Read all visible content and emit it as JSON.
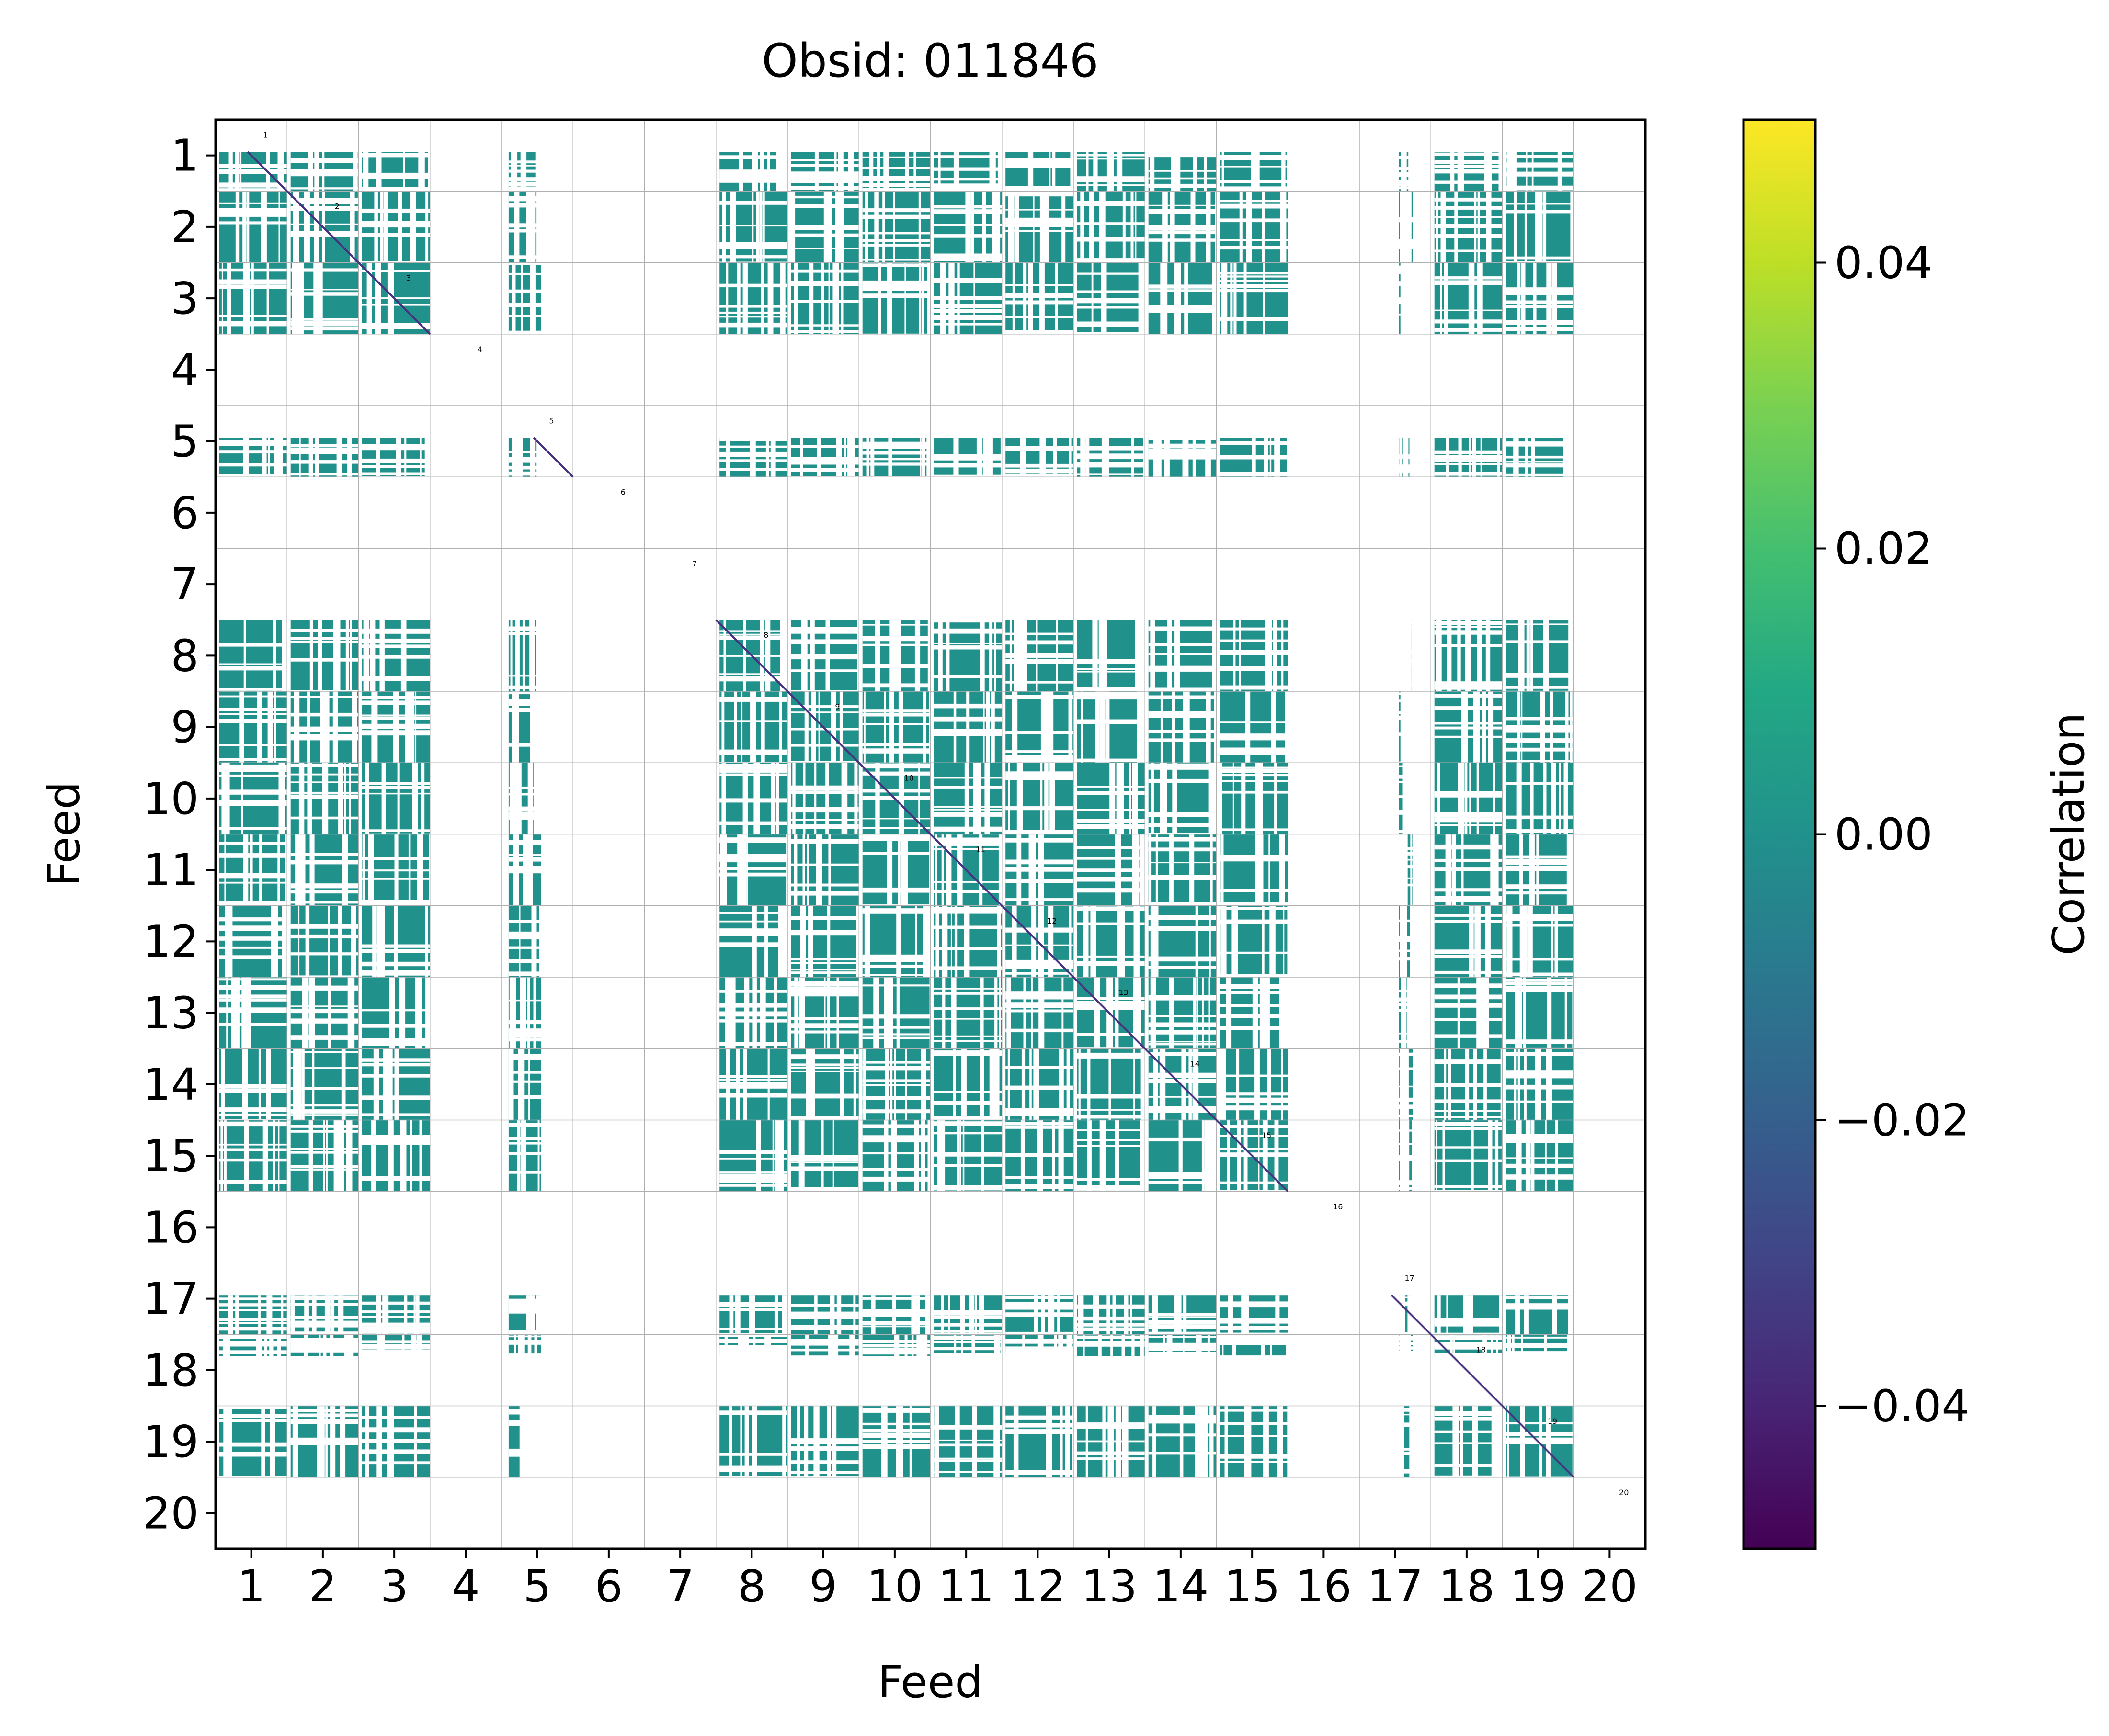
{
  "chart_data": {
    "type": "heatmap",
    "title": "Obsid: 011846",
    "xlabel": "Feed",
    "ylabel": "Feed",
    "x_ticks": [
      "1",
      "2",
      "3",
      "4",
      "5",
      "6",
      "7",
      "8",
      "9",
      "10",
      "11",
      "12",
      "13",
      "14",
      "15",
      "16",
      "17",
      "18",
      "19",
      "20"
    ],
    "y_ticks": [
      "1",
      "2",
      "3",
      "4",
      "5",
      "6",
      "7",
      "8",
      "9",
      "10",
      "11",
      "12",
      "13",
      "14",
      "15",
      "16",
      "17",
      "18",
      "19",
      "20"
    ],
    "feeds": [
      1,
      2,
      3,
      4,
      5,
      6,
      7,
      8,
      9,
      10,
      11,
      12,
      13,
      14,
      15,
      16,
      17,
      18,
      19,
      20
    ],
    "block_labels": [
      "1",
      "2",
      "3",
      "4",
      "5",
      "6",
      "7",
      "8",
      "9",
      "10",
      "11",
      "12",
      "13",
      "14",
      "15",
      "16",
      "17",
      "18",
      "19",
      "20"
    ],
    "colorbar": {
      "label": "Correlation",
      "range": [
        -0.05,
        0.05
      ],
      "ticks": [
        0.04,
        0.02,
        0.0,
        -0.02,
        -0.04
      ],
      "tick_labels": [
        "0.04",
        "0.02",
        "0.00",
        "−0.02",
        "−0.04"
      ],
      "colormap": "viridis"
    },
    "cell_value": 0.0,
    "cell_color": "#21918c",
    "diagonal_color": "#46327e",
    "grid": true,
    "description_note_free": true,
    "masking": {
      "empty_feeds": [
        4,
        6,
        7,
        16,
        20
      ],
      "partial_rows": {
        "1": "half",
        "5": "half",
        "17": "half",
        "18": "upper-strip"
      }
    }
  }
}
